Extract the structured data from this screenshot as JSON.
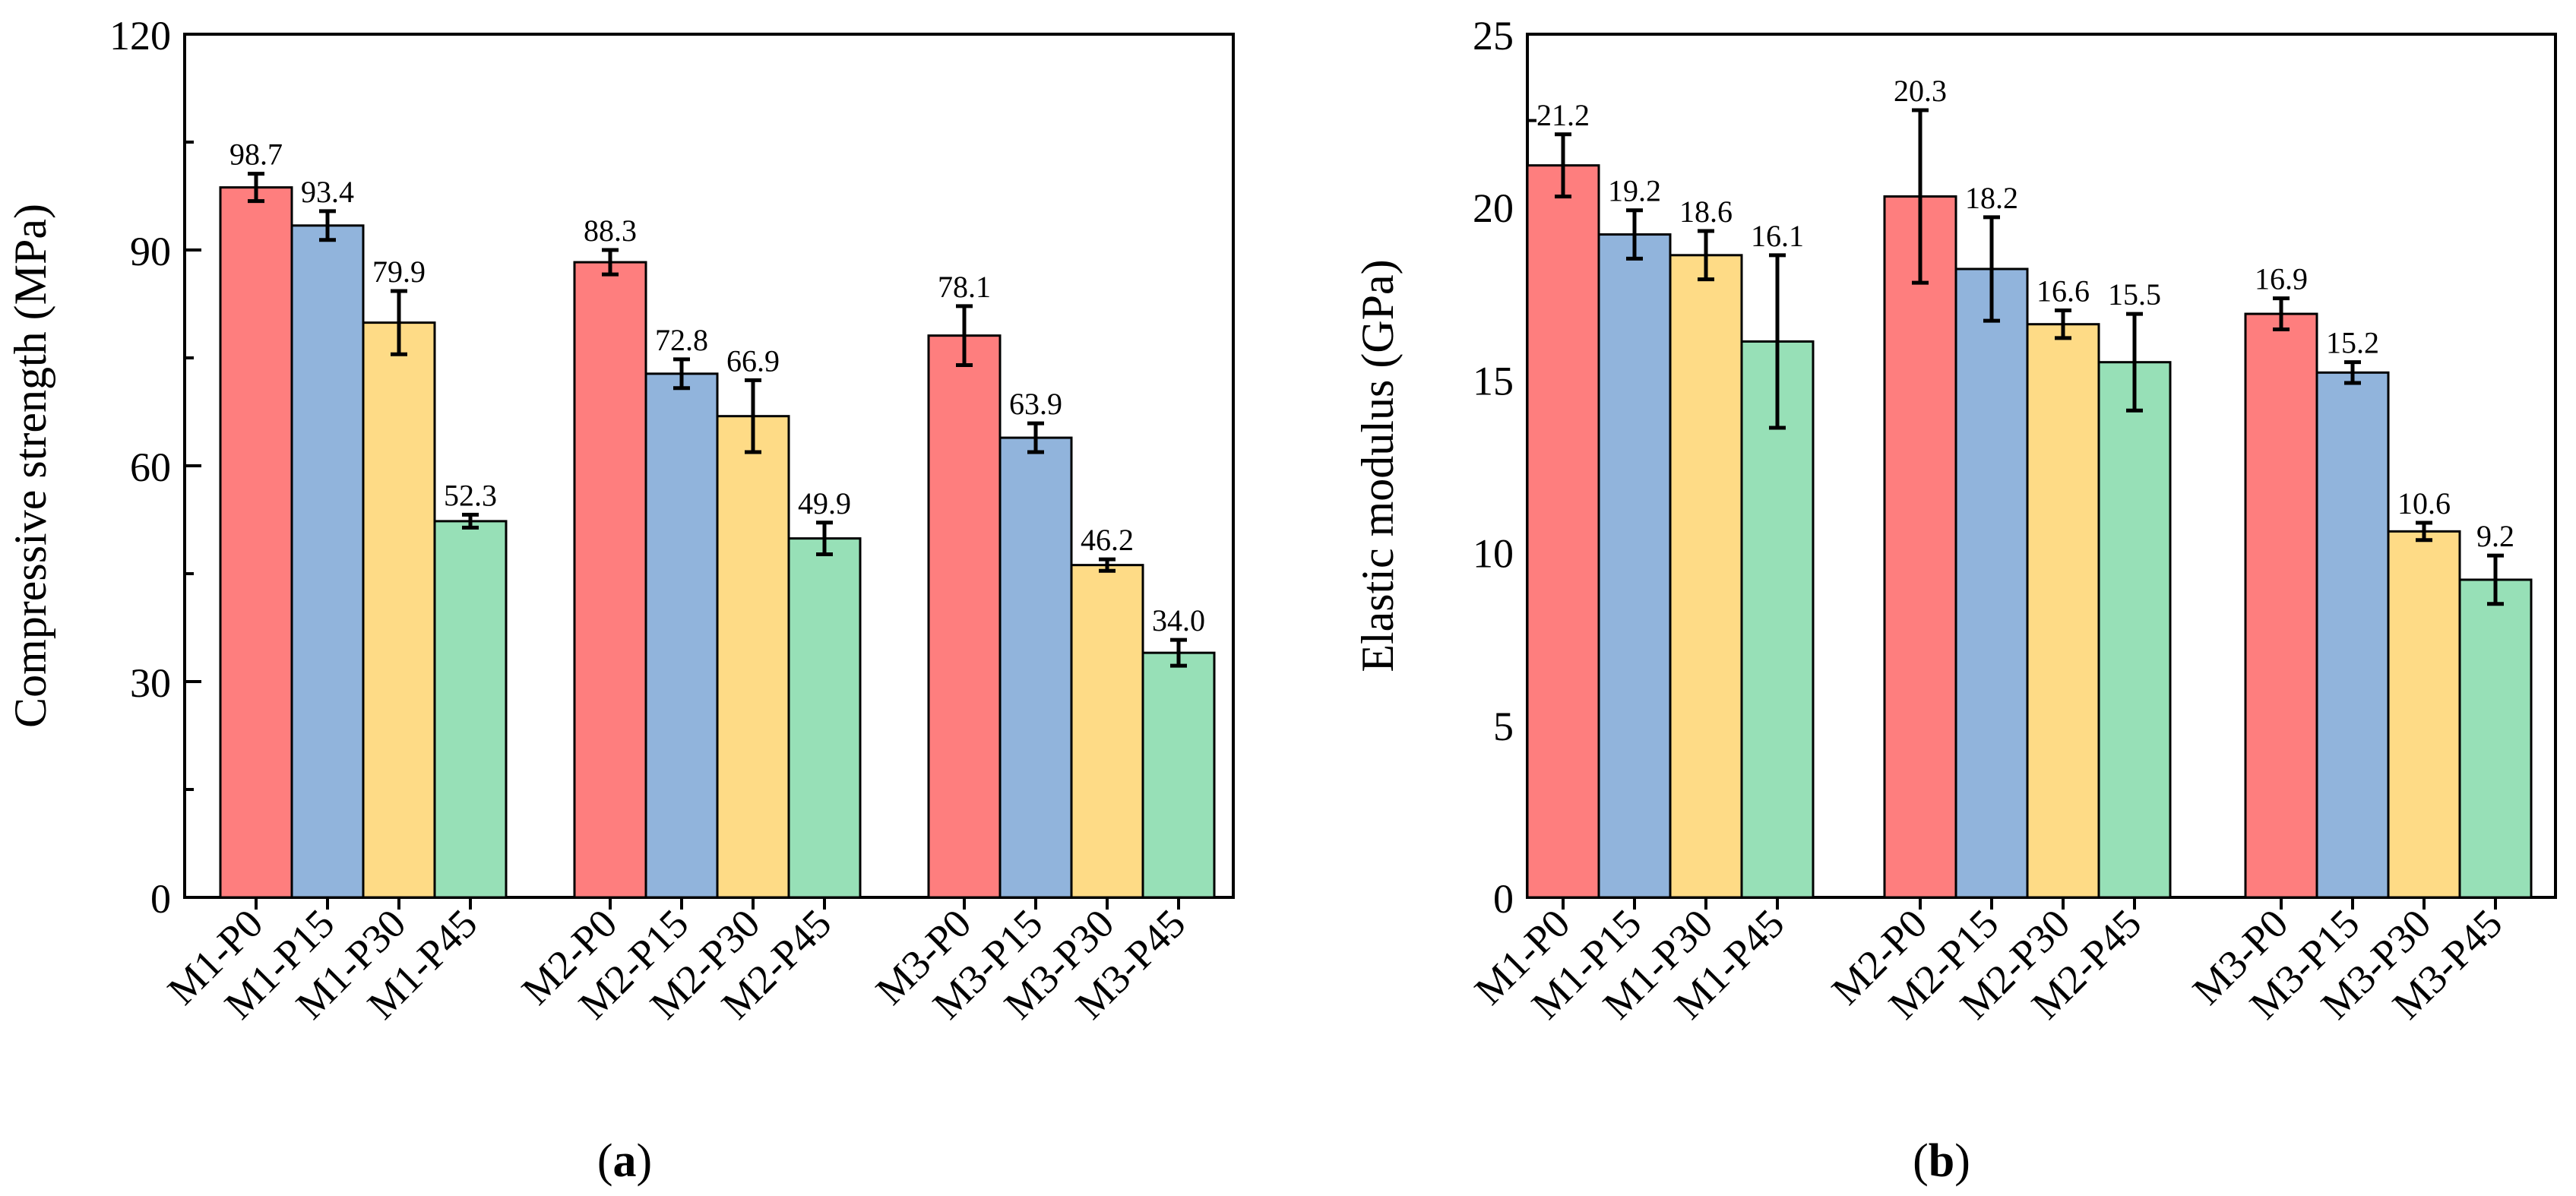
{
  "chart_data": [
    {
      "type": "bar",
      "panel_label": "(a)",
      "panel_letter": "a",
      "ylabel": "Compressive strength (MPa)",
      "xlabel": "",
      "ylim": [
        0,
        120
      ],
      "yticks": [
        0,
        30,
        60,
        90,
        120
      ],
      "categories": [
        "M1-P0",
        "M1-P15",
        "M1-P30",
        "M1-P45",
        "M2-P0",
        "M2-P15",
        "M2-P30",
        "M2-P45",
        "M3-P0",
        "M3-P15",
        "M3-P30",
        "M3-P45"
      ],
      "groups": [
        {
          "series_colors": [
            "#fe7e7e",
            "#91b4dc",
            "#fedb86",
            "#97e0b7"
          ],
          "labels": [
            "M1-P0",
            "M1-P15",
            "M1-P30",
            "M1-P45"
          ],
          "values": [
            98.7,
            93.4,
            79.9,
            52.3
          ],
          "value_labels": [
            "98.7",
            "93.4",
            "79.9",
            "52.3"
          ],
          "errors": [
            1.9,
            2.0,
            4.4,
            0.9
          ]
        },
        {
          "series_colors": [
            "#fe7e7e",
            "#91b4dc",
            "#fedb86",
            "#97e0b7"
          ],
          "labels": [
            "M2-P0",
            "M2-P15",
            "M2-P30",
            "M2-P45"
          ],
          "values": [
            88.3,
            72.8,
            66.9,
            49.9
          ],
          "value_labels": [
            "88.3",
            "72.8",
            "66.9",
            "49.9"
          ],
          "errors": [
            1.7,
            2.0,
            5.0,
            2.2
          ]
        },
        {
          "series_colors": [
            "#fe7e7e",
            "#91b4dc",
            "#fedb86",
            "#97e0b7"
          ],
          "labels": [
            "M3-P0",
            "M3-P15",
            "M3-P30",
            "M3-P45"
          ],
          "values": [
            78.1,
            63.9,
            46.2,
            34.0
          ],
          "value_labels": [
            "78.1",
            "63.9",
            "46.2",
            "34.0"
          ],
          "errors": [
            4.1,
            2.0,
            0.8,
            1.8
          ]
        }
      ]
    },
    {
      "type": "bar",
      "panel_label": "(b)",
      "panel_letter": "b",
      "ylabel": "Elastic modulus (GPa)",
      "xlabel": "",
      "ylim": [
        0,
        25
      ],
      "yticks": [
        0,
        5,
        10,
        15,
        20,
        25
      ],
      "categories": [
        "M1-P0",
        "M1-P15",
        "M1-P30",
        "M1-P45",
        "M2-P0",
        "M2-P15",
        "M2-P30",
        "M2-P45",
        "M3-P0",
        "M3-P15",
        "M3-P30",
        "M3-P45"
      ],
      "groups": [
        {
          "series_colors": [
            "#fe7e7e",
            "#91b4dc",
            "#fedb86",
            "#97e0b7"
          ],
          "labels": [
            "M1-P0",
            "M1-P15",
            "M1-P30",
            "M1-P45"
          ],
          "values": [
            21.2,
            19.2,
            18.6,
            16.1
          ],
          "value_labels": [
            "21.2",
            "19.2",
            "18.6",
            "16.1"
          ],
          "errors": [
            0.9,
            0.7,
            0.7,
            2.5
          ]
        },
        {
          "series_colors": [
            "#fe7e7e",
            "#91b4dc",
            "#fedb86",
            "#97e0b7"
          ],
          "labels": [
            "M2-P0",
            "M2-P15",
            "M2-P30",
            "M2-P45"
          ],
          "values": [
            20.3,
            18.2,
            16.6,
            15.5
          ],
          "value_labels": [
            "20.3",
            "18.2",
            "16.6",
            "15.5"
          ],
          "errors": [
            2.5,
            1.5,
            0.4,
            1.4
          ]
        },
        {
          "series_colors": [
            "#fe7e7e",
            "#91b4dc",
            "#fedb86",
            "#97e0b7"
          ],
          "labels": [
            "M3-P0",
            "M3-P15",
            "M3-P30",
            "M3-P45"
          ],
          "values": [
            16.9,
            15.2,
            10.6,
            9.2
          ],
          "value_labels": [
            "16.9",
            "15.2",
            "10.6",
            "9.2"
          ],
          "errors": [
            0.45,
            0.3,
            0.25,
            0.7
          ]
        }
      ]
    }
  ]
}
